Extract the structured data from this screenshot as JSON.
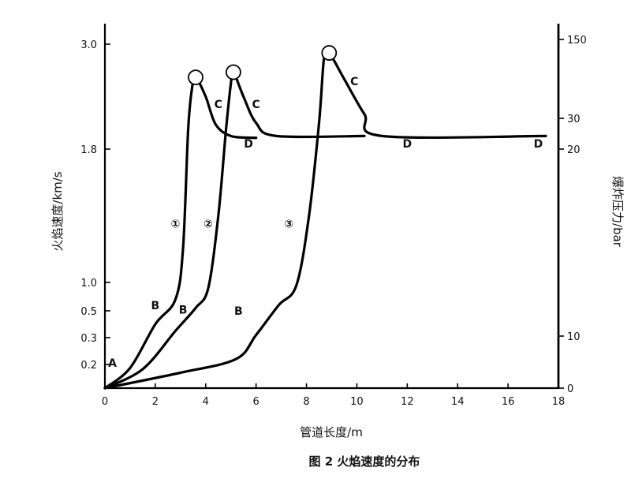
{
  "chart_data": {
    "type": "line",
    "caption": "图 2   火焰速度的分布",
    "xlabel": "管道长度/m",
    "ylabel": "火焰速度/km/s",
    "y2label": "爆炸压力/bar",
    "xlim": [
      0,
      18
    ],
    "x_ticks": [
      "0",
      "2",
      "4",
      "6",
      "8",
      "10",
      "12",
      "14",
      "16",
      "18"
    ],
    "y_ticks": [
      {
        "label": "0.2",
        "v": 0.2
      },
      {
        "label": "0.3",
        "v": 0.3
      },
      {
        "label": "0.5",
        "v": 0.5
      },
      {
        "label": "1.0",
        "v": 1.0
      },
      {
        "label": "1.8",
        "v": 1.8
      },
      {
        "label": "3.0",
        "v": 3.0
      }
    ],
    "y2_ticks": [
      {
        "label": "0",
        "v": 0
      },
      {
        "label": "10",
        "v": 10
      },
      {
        "label": "20",
        "v": 20
      },
      {
        "label": "30",
        "v": 30
      },
      {
        "label": "150",
        "v": 150
      }
    ],
    "series": [
      {
        "name": "①",
        "points": [
          [
            0,
            0
          ],
          [
            1.0,
            0.17
          ],
          [
            2.0,
            0.4
          ],
          [
            2.8,
            0.7
          ],
          [
            3.1,
            1.2
          ],
          [
            3.3,
            2.0
          ],
          [
            3.45,
            2.48
          ],
          [
            3.6,
            2.62
          ],
          [
            4.0,
            2.4
          ],
          [
            4.4,
            2.08
          ],
          [
            5.0,
            1.95
          ],
          [
            5.8,
            1.93
          ],
          [
            6.0,
            1.93
          ]
        ],
        "peak": [
          3.6,
          2.62
        ]
      },
      {
        "name": "②",
        "points": [
          [
            0,
            0
          ],
          [
            1.5,
            0.16
          ],
          [
            2.8,
            0.35
          ],
          [
            3.6,
            0.55
          ],
          [
            4.1,
            0.9
          ],
          [
            4.5,
            1.4
          ],
          [
            4.8,
            2.0
          ],
          [
            5.0,
            2.55
          ],
          [
            5.1,
            2.68
          ],
          [
            5.5,
            2.4
          ],
          [
            6.0,
            2.1
          ],
          [
            6.8,
            1.95
          ],
          [
            10.3,
            1.95
          ]
        ],
        "peak": [
          5.1,
          2.68
        ]
      },
      {
        "name": "③",
        "points": [
          [
            0,
            0
          ],
          [
            3.0,
            0.13
          ],
          [
            5.2,
            0.22
          ],
          [
            6.0,
            0.32
          ],
          [
            6.9,
            0.6
          ],
          [
            7.6,
            0.95
          ],
          [
            8.1,
            1.4
          ],
          [
            8.5,
            2.1
          ],
          [
            8.7,
            2.85
          ],
          [
            8.9,
            2.9
          ],
          [
            9.5,
            2.6
          ],
          [
            10.3,
            2.2
          ],
          [
            11.0,
            1.95
          ],
          [
            17.5,
            1.95
          ]
        ],
        "peak": [
          8.9,
          2.9
        ]
      }
    ],
    "annotations": [
      {
        "text": "A",
        "x": 0.3,
        "y": 0.18
      },
      {
        "text": "B",
        "x": 2.0,
        "y": 0.53
      },
      {
        "text": "B",
        "x": 3.1,
        "y": 0.48
      },
      {
        "text": "B",
        "x": 5.3,
        "y": 0.47
      },
      {
        "text": "C",
        "x": 4.5,
        "y": 2.27
      },
      {
        "text": "C",
        "x": 6.0,
        "y": 2.27
      },
      {
        "text": "C",
        "x": 9.9,
        "y": 2.53
      },
      {
        "text": "D",
        "x": 5.7,
        "y": 1.82
      },
      {
        "text": "D",
        "x": 12.0,
        "y": 1.82
      },
      {
        "text": "D",
        "x": 17.2,
        "y": 1.82
      },
      {
        "text": "①",
        "x": 2.8,
        "y": 1.33
      },
      {
        "text": "②",
        "x": 4.1,
        "y": 1.33
      },
      {
        "text": "③",
        "x": 7.3,
        "y": 1.33
      }
    ]
  }
}
